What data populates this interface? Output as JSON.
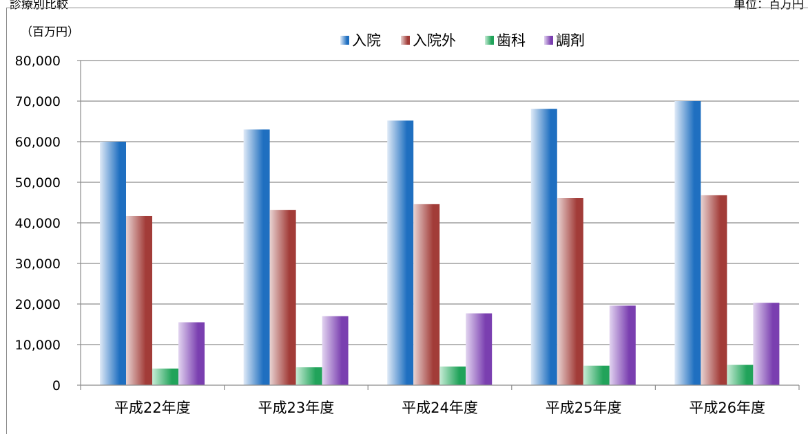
{
  "header": {
    "title": "診療別比較",
    "unit": "単位：百万円"
  },
  "chart_data": {
    "type": "bar",
    "ylabel": "（百万円）",
    "ylim": [
      0,
      80000
    ],
    "yticks": [
      0,
      10000,
      20000,
      30000,
      40000,
      50000,
      60000,
      70000,
      80000
    ],
    "ytick_labels": [
      "0",
      "10,000",
      "20,000",
      "30,000",
      "40,000",
      "50,000",
      "60,000",
      "70,000",
      "80,000"
    ],
    "grid": true,
    "legend_position": "top",
    "categories": [
      "平成22年度",
      "平成23年度",
      "平成24年度",
      "平成25年度",
      "平成26年度"
    ],
    "series": [
      {
        "name": "入院",
        "values": [
          60000,
          63000,
          65200,
          68100,
          70000
        ],
        "color": "#1f6fc0"
      },
      {
        "name": "入院外",
        "values": [
          41700,
          43200,
          44600,
          46100,
          46800
        ],
        "color": "#a23c38"
      },
      {
        "name": "歯科",
        "values": [
          4100,
          4400,
          4600,
          4800,
          5000
        ],
        "color": "#21a35a"
      },
      {
        "name": "調剤",
        "values": [
          15500,
          17000,
          17700,
          19600,
          20300
        ],
        "color": "#7a3fb0"
      }
    ]
  }
}
